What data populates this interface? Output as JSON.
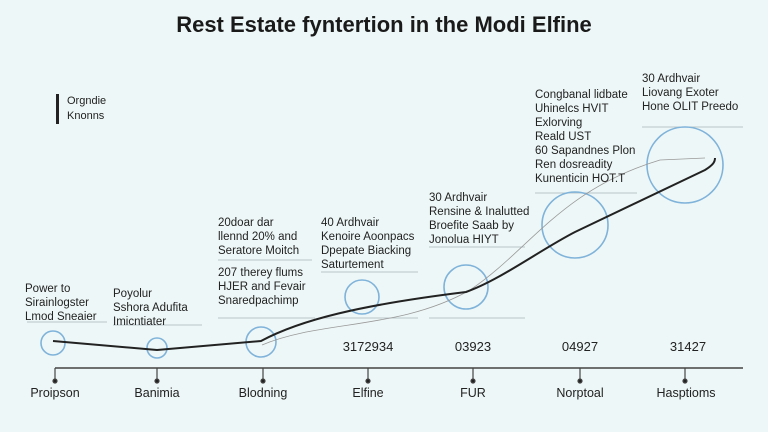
{
  "title": "Rest Estate fyntertion in the Modi Elfine",
  "legend": [
    "Orgndie",
    "Knonns"
  ],
  "colors": {
    "background": "#eef7f7",
    "circle": "#6fa8d6",
    "line": "#222222"
  },
  "blocks": [
    [
      "Power to",
      "Sirainlogster",
      "Lmod Sneaier"
    ],
    [
      "Poyolur",
      "Sshora Adufita",
      "Imicntiater"
    ],
    [
      "20doar dar",
      "llennd 20% and",
      "Seratore Moitch"
    ],
    [
      "207 therey flums",
      "HJER and Fevair",
      "Snaredpachimp"
    ],
    [
      "40 Ardhvair",
      "Kenoire Aoonpacs",
      "Dpepate Biacking",
      "Saturtement"
    ],
    [
      "30 Ardhvair",
      "Rensine & Inalutted",
      "Broefite Saab by",
      "Jonolua HIYT"
    ],
    [
      "Congbanal lidbate",
      "Uhinelcs HVIT",
      "Exlorving",
      "Reald UST",
      "60 Sapandnes Plon",
      "Ren dosreadity",
      "Kunenticin HOT.T"
    ],
    [
      "30 Ardhvair",
      "Liovang Exoter",
      "Hone OLIT Preedo"
    ]
  ],
  "values": [
    "3172934",
    "03923",
    "04927",
    "31427"
  ],
  "axis_labels": [
    "Proipson",
    "Banimia",
    "Blodning",
    "Elfine",
    "FUR",
    "Norptoal",
    "Hasptioms"
  ]
}
